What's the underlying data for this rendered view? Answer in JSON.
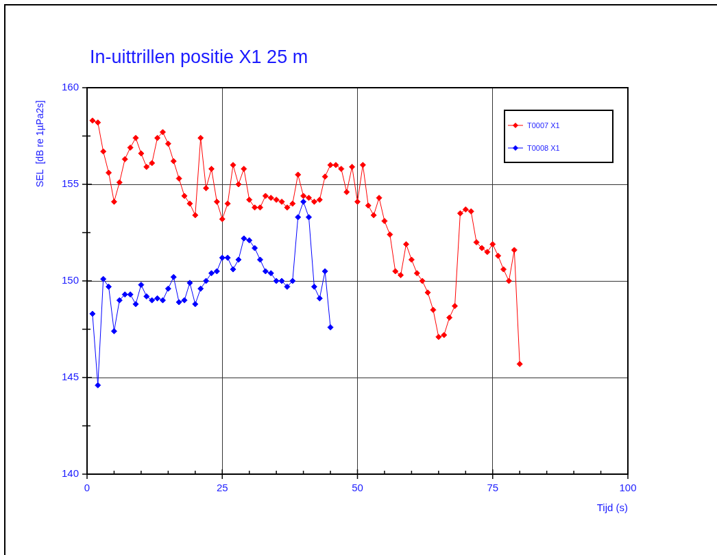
{
  "chart_data": {
    "type": "line",
    "title": "In-uittrillen positie X1 25 m",
    "xlabel": "Tijd (s)",
    "ylabel": "SEL  [dB re 1µPa2s]",
    "xlim": [
      0,
      100
    ],
    "xticks": [
      0,
      {
        "value": 5,
        "label": null
      },
      {
        "value": 10,
        "label": null
      },
      {
        "value": 15,
        "label": null
      },
      {
        "value": 20,
        "label": null
      },
      25,
      {
        "value": 30,
        "label": null
      },
      {
        "value": 35,
        "label": null
      },
      {
        "value": 40,
        "label": null
      },
      {
        "value": 45,
        "label": null
      },
      50,
      {
        "value": 55,
        "label": null
      },
      {
        "value": 60,
        "label": null
      },
      {
        "value": 65,
        "label": null
      },
      {
        "value": 70,
        "label": null
      },
      75,
      {
        "value": 80,
        "label": null
      },
      {
        "value": 85,
        "label": null
      },
      {
        "value": 90,
        "label": null
      },
      {
        "value": 95,
        "label": null
      },
      100
    ],
    "ylim": [
      140,
      160
    ],
    "yticks": [
      140,
      {
        "value": 142.5,
        "label": null
      },
      145,
      {
        "value": 147.5,
        "label": null
      },
      150,
      {
        "value": 152.5,
        "label": null
      },
      155,
      {
        "value": 157.5,
        "label": null
      },
      160
    ],
    "grid": true,
    "legend": "top right",
    "marker": "diamond",
    "line_style": "solid",
    "x": [
      1,
      2,
      3,
      4,
      5,
      6,
      7,
      8,
      9,
      10,
      11,
      12,
      13,
      14,
      15,
      16,
      17,
      18,
      19,
      20,
      21,
      22,
      23,
      24,
      25,
      26,
      27,
      28,
      29,
      30,
      31,
      32,
      33,
      34,
      35,
      36,
      37,
      38,
      39,
      40,
      41,
      42,
      43,
      44,
      45,
      46,
      47,
      48,
      49,
      50,
      51,
      52,
      53,
      54,
      55,
      56,
      57,
      58,
      59,
      60,
      61,
      62,
      63,
      64,
      65,
      66,
      67,
      68,
      69,
      70,
      71,
      72,
      73,
      74,
      75,
      76,
      77,
      78,
      79,
      80
    ],
    "series": [
      {
        "name": "T0007 X1",
        "color": "#ff0000",
        "values": [
          158.3,
          158.2,
          156.7,
          155.6,
          154.1,
          155.1,
          156.3,
          156.9,
          157.4,
          156.6,
          155.9,
          156.1,
          157.4,
          157.7,
          157.1,
          156.2,
          155.3,
          154.4,
          154.0,
          153.4,
          157.4,
          154.8,
          155.8,
          154.1,
          153.2,
          154.0,
          156.0,
          155.0,
          155.8,
          154.2,
          153.8,
          153.8,
          154.4,
          154.3,
          154.2,
          154.1,
          153.8,
          154.0,
          155.5,
          154.4,
          154.3,
          154.1,
          154.2,
          155.4,
          156.0,
          156.0,
          155.8,
          154.6,
          155.9,
          154.1,
          156.0,
          153.9,
          153.4,
          154.3,
          153.1,
          152.4,
          150.5,
          150.3,
          151.9,
          151.1,
          150.4,
          150.0,
          149.4,
          148.5,
          147.1,
          147.2,
          148.1,
          148.7,
          153.5,
          153.7,
          153.6,
          152.0,
          151.7,
          151.5,
          151.9,
          151.3,
          150.6,
          150.0,
          151.6,
          145.7
        ]
      },
      {
        "name": "T0008 X1",
        "color": "#0000ff",
        "values": [
          148.3,
          144.6,
          150.1,
          149.7,
          147.4,
          149.0,
          149.3,
          149.3,
          148.8,
          149.8,
          149.2,
          149.0,
          149.1,
          149.0,
          149.6,
          150.2,
          148.9,
          149.0,
          149.9,
          148.8,
          149.6,
          150.0,
          150.4,
          150.5,
          151.2,
          151.2,
          150.6,
          151.1,
          152.2,
          152.1,
          151.7,
          151.1,
          150.5,
          150.4,
          150.0,
          150.0,
          149.7,
          150.0,
          153.3,
          154.1,
          153.3,
          149.7,
          149.1,
          150.5,
          147.6,
          null,
          null,
          null,
          null,
          null,
          null,
          null,
          null,
          null,
          null,
          null,
          null,
          null,
          null,
          null,
          null,
          null,
          null,
          null,
          null,
          null,
          null,
          null,
          null,
          null,
          null,
          null,
          null,
          null,
          null,
          null,
          null,
          null,
          null,
          null
        ]
      }
    ]
  }
}
